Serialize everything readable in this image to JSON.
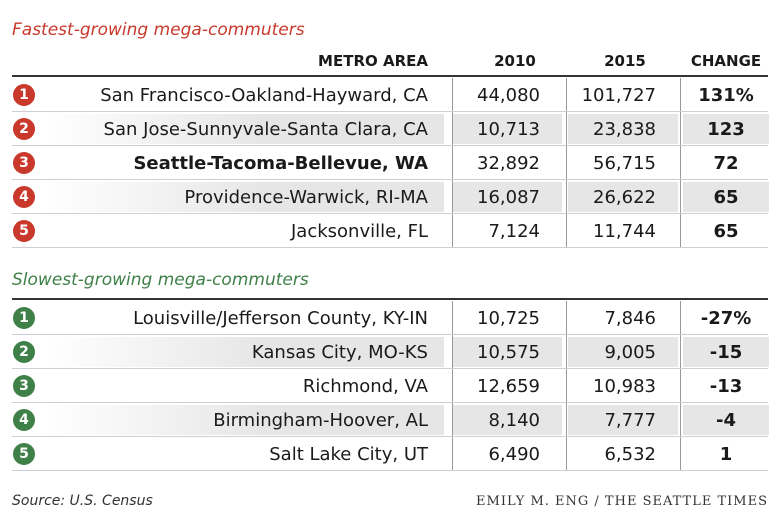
{
  "chart_data": {
    "type": "table",
    "columns": [
      "METRO AREA",
      "2010",
      "2015",
      "CHANGE"
    ],
    "sections": [
      {
        "title": "Fastest-growing mega-commuters",
        "color": "#c8392b",
        "rows": [
          {
            "rank": "1",
            "metro": "San Francisco-Oakland-Hayward, CA",
            "y2010": "44,080",
            "y2015": "101,727",
            "change": "131%"
          },
          {
            "rank": "2",
            "metro": "San Jose-Sunnyvale-Santa Clara, CA",
            "y2010": "10,713",
            "y2015": "23,838",
            "change": "123"
          },
          {
            "rank": "3",
            "metro": "Seattle-Tacoma-Bellevue, WA",
            "y2010": "32,892",
            "y2015": "56,715",
            "change": "72"
          },
          {
            "rank": "4",
            "metro": "Providence-Warwick, RI-MA",
            "y2010": "16,087",
            "y2015": "26,622",
            "change": "65"
          },
          {
            "rank": "5",
            "metro": "Jacksonville, FL",
            "y2010": "7,124",
            "y2015": "11,744",
            "change": "65"
          }
        ]
      },
      {
        "title": "Slowest-growing mega-commuters",
        "color": "#3f8048",
        "rows": [
          {
            "rank": "1",
            "metro": "Louisville/Jefferson County, KY-IN",
            "y2010": "10,725",
            "y2015": "7,846",
            "change": "-27%"
          },
          {
            "rank": "2",
            "metro": "Kansas City, MO-KS",
            "y2010": "10,575",
            "y2015": "9,005",
            "change": "-15"
          },
          {
            "rank": "3",
            "metro": "Richmond, VA",
            "y2010": "12,659",
            "y2015": "10,983",
            "change": "-13"
          },
          {
            "rank": "4",
            "metro": "Birmingham-Hoover, AL",
            "y2010": "8,140",
            "y2015": "7,777",
            "change": "-4"
          },
          {
            "rank": "5",
            "metro": "Salt Lake City, UT",
            "y2010": "6,490",
            "y2015": "6,532",
            "change": "1"
          }
        ]
      }
    ]
  },
  "header": {
    "metro": "METRO AREA",
    "y2010": "2010",
    "y2015": "2015",
    "change": "CHANGE"
  },
  "footer": {
    "source": "Source: U.S. Census",
    "credit": "EMILY M. ENG / THE SEATTLE TIMES"
  },
  "highlight_metro": "Seattle-Tacoma-Bellevue, WA"
}
